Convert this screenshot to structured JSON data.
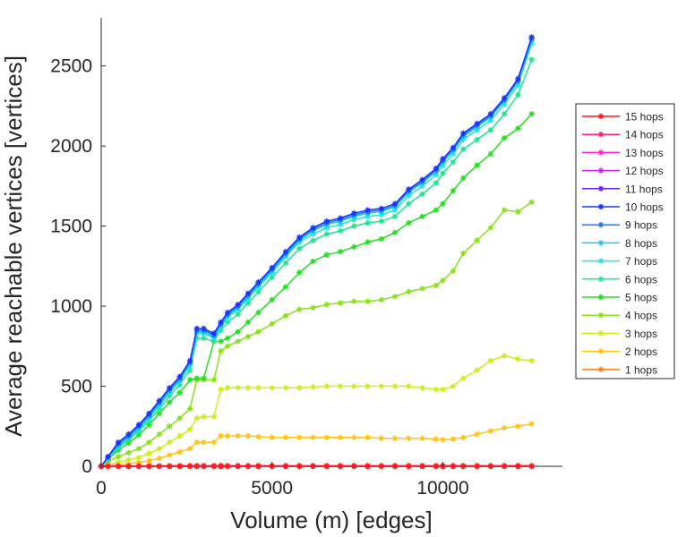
{
  "chart_data": {
    "type": "line",
    "xlabel": "Volume (m) [edges]",
    "ylabel": "Average reachable vertices [vertices]",
    "xlim": [
      0,
      13500
    ],
    "ylim": [
      0,
      2800
    ],
    "xticks": [
      0,
      5000,
      10000
    ],
    "yticks": [
      0,
      500,
      1000,
      1500,
      2000,
      2500
    ],
    "xtick_labels": [
      "0",
      "5000",
      "10000"
    ],
    "ytick_labels": [
      "0",
      "500",
      "1000",
      "1500",
      "2000",
      "2500"
    ],
    "grid": false,
    "legend_position": "right",
    "marker": "asterisk",
    "x": [
      0,
      200,
      500,
      800,
      1100,
      1400,
      1700,
      2000,
      2300,
      2600,
      2800,
      3000,
      3300,
      3500,
      3700,
      4000,
      4300,
      4600,
      5000,
      5400,
      5800,
      6200,
      6600,
      7000,
      7400,
      7800,
      8200,
      8600,
      9000,
      9400,
      9800,
      10000,
      10300,
      10600,
      11000,
      11400,
      11800,
      12200,
      12600
    ],
    "series": [
      {
        "name": "15 hops",
        "color": "#ff1a1a",
        "values": [
          0,
          0,
          0,
          0,
          0,
          0,
          0,
          0,
          0,
          0,
          0,
          0,
          0,
          0,
          0,
          0,
          0,
          0,
          0,
          0,
          0,
          0,
          0,
          0,
          0,
          0,
          0,
          0,
          0,
          0,
          0,
          0,
          0,
          0,
          0,
          0,
          0,
          0,
          0
        ]
      },
      {
        "name": "14 hops",
        "color": "#ff1f6e",
        "values": [
          0,
          0,
          0,
          0,
          0,
          0,
          0,
          0,
          0,
          0,
          0,
          0,
          0,
          0,
          0,
          0,
          0,
          0,
          0,
          0,
          0,
          0,
          0,
          0,
          0,
          0,
          0,
          0,
          0,
          0,
          0,
          0,
          0,
          0,
          0,
          0,
          0,
          0,
          0
        ]
      },
      {
        "name": "13 hops",
        "color": "#ff22c8",
        "values": [
          0,
          0,
          0,
          0,
          0,
          0,
          0,
          0,
          0,
          0,
          0,
          0,
          0,
          0,
          0,
          0,
          0,
          0,
          0,
          0,
          0,
          0,
          0,
          0,
          0,
          0,
          0,
          0,
          0,
          0,
          0,
          0,
          0,
          0,
          0,
          0,
          0,
          0,
          0
        ]
      },
      {
        "name": "12 hops",
        "color": "#cc22ff",
        "values": [
          0,
          0,
          0,
          0,
          0,
          0,
          0,
          0,
          0,
          0,
          0,
          0,
          0,
          0,
          0,
          0,
          0,
          0,
          0,
          0,
          0,
          0,
          0,
          0,
          0,
          0,
          0,
          0,
          0,
          0,
          0,
          0,
          0,
          0,
          0,
          0,
          0,
          0,
          0
        ]
      },
      {
        "name": "11 hops",
        "color": "#6a1fff",
        "values": [
          0,
          0,
          0,
          0,
          0,
          0,
          0,
          0,
          0,
          0,
          0,
          0,
          0,
          0,
          0,
          0,
          0,
          0,
          0,
          0,
          0,
          0,
          0,
          0,
          0,
          0,
          0,
          0,
          0,
          0,
          0,
          0,
          0,
          0,
          0,
          0,
          0,
          0,
          0
        ]
      },
      {
        "name": "10 hops",
        "color": "#1a33ff",
        "values": [
          0,
          60,
          150,
          200,
          260,
          330,
          410,
          490,
          560,
          660,
          860,
          860,
          830,
          900,
          960,
          1010,
          1080,
          1150,
          1240,
          1340,
          1430,
          1490,
          1530,
          1550,
          1580,
          1600,
          1610,
          1640,
          1730,
          1790,
          1860,
          1920,
          1990,
          2080,
          2140,
          2200,
          2300,
          2420,
          2680
        ]
      },
      {
        "name": "9 hops",
        "color": "#1a7aff",
        "values": [
          0,
          60,
          140,
          190,
          250,
          320,
          400,
          480,
          550,
          650,
          850,
          850,
          820,
          890,
          950,
          1000,
          1070,
          1140,
          1230,
          1330,
          1420,
          1480,
          1520,
          1540,
          1570,
          1590,
          1600,
          1630,
          1720,
          1780,
          1850,
          1910,
          1980,
          2070,
          2130,
          2190,
          2290,
          2410,
          2670
        ]
      },
      {
        "name": "8 hops",
        "color": "#1ac8ff",
        "values": [
          0,
          55,
          130,
          180,
          240,
          310,
          390,
          470,
          540,
          640,
          840,
          840,
          810,
          880,
          940,
          990,
          1060,
          1130,
          1220,
          1320,
          1410,
          1470,
          1510,
          1530,
          1560,
          1580,
          1590,
          1620,
          1710,
          1770,
          1840,
          1900,
          1970,
          2060,
          2120,
          2180,
          2280,
          2400,
          2660
        ]
      },
      {
        "name": "7 hops",
        "color": "#1ae8d8",
        "values": [
          0,
          55,
          125,
          175,
          230,
          300,
          380,
          460,
          530,
          630,
          830,
          830,
          800,
          870,
          930,
          980,
          1050,
          1120,
          1210,
          1310,
          1400,
          1450,
          1490,
          1510,
          1540,
          1560,
          1570,
          1600,
          1690,
          1750,
          1820,
          1880,
          1950,
          2040,
          2100,
          2160,
          2260,
          2380,
          2640
        ]
      },
      {
        "name": "6 hops",
        "color": "#1ae88e",
        "values": [
          0,
          50,
          115,
          165,
          220,
          285,
          360,
          440,
          510,
          600,
          800,
          800,
          780,
          850,
          900,
          950,
          1020,
          1090,
          1180,
          1270,
          1360,
          1410,
          1450,
          1470,
          1500,
          1520,
          1530,
          1560,
          1640,
          1700,
          1770,
          1830,
          1900,
          1980,
          2040,
          2100,
          2200,
          2320,
          2540
        ]
      },
      {
        "name": "5 hops",
        "color": "#22e022",
        "values": [
          0,
          45,
          100,
          145,
          195,
          260,
          330,
          400,
          460,
          540,
          550,
          550,
          780,
          780,
          800,
          840,
          900,
          960,
          1040,
          1120,
          1210,
          1280,
          1320,
          1340,
          1370,
          1400,
          1420,
          1460,
          1520,
          1560,
          1600,
          1640,
          1720,
          1800,
          1880,
          1950,
          2050,
          2110,
          2200
        ]
      },
      {
        "name": "4 hops",
        "color": "#88e01f",
        "values": [
          0,
          30,
          60,
          85,
          110,
          150,
          200,
          250,
          300,
          360,
          540,
          540,
          540,
          720,
          750,
          780,
          810,
          840,
          890,
          940,
          980,
          990,
          1010,
          1020,
          1030,
          1030,
          1040,
          1060,
          1090,
          1110,
          1130,
          1160,
          1220,
          1330,
          1410,
          1490,
          1600,
          1590,
          1650
        ]
      },
      {
        "name": "3 hops",
        "color": "#ccee1a",
        "values": [
          0,
          10,
          25,
          40,
          55,
          80,
          110,
          150,
          190,
          230,
          300,
          310,
          310,
          480,
          490,
          490,
          490,
          490,
          490,
          490,
          490,
          495,
          500,
          500,
          500,
          500,
          500,
          500,
          500,
          490,
          480,
          480,
          500,
          550,
          600,
          660,
          690,
          670,
          660
        ]
      },
      {
        "name": "2 hops",
        "color": "#ffc21a",
        "values": [
          0,
          5,
          10,
          15,
          25,
          35,
          50,
          70,
          90,
          110,
          150,
          150,
          150,
          190,
          190,
          190,
          190,
          185,
          180,
          180,
          180,
          180,
          180,
          180,
          180,
          180,
          175,
          175,
          175,
          175,
          170,
          165,
          170,
          180,
          200,
          220,
          240,
          250,
          265
        ]
      },
      {
        "name": "1 hops",
        "color": "#ff7f1a",
        "values": [
          0,
          1,
          1,
          2,
          2,
          3,
          3,
          4,
          4,
          5,
          5,
          5,
          5,
          5,
          5,
          5,
          5,
          5,
          5,
          5,
          5,
          5,
          5,
          5,
          5,
          5,
          5,
          5,
          5,
          5,
          5,
          5,
          5,
          5,
          5,
          5,
          5,
          5,
          5
        ]
      }
    ]
  }
}
